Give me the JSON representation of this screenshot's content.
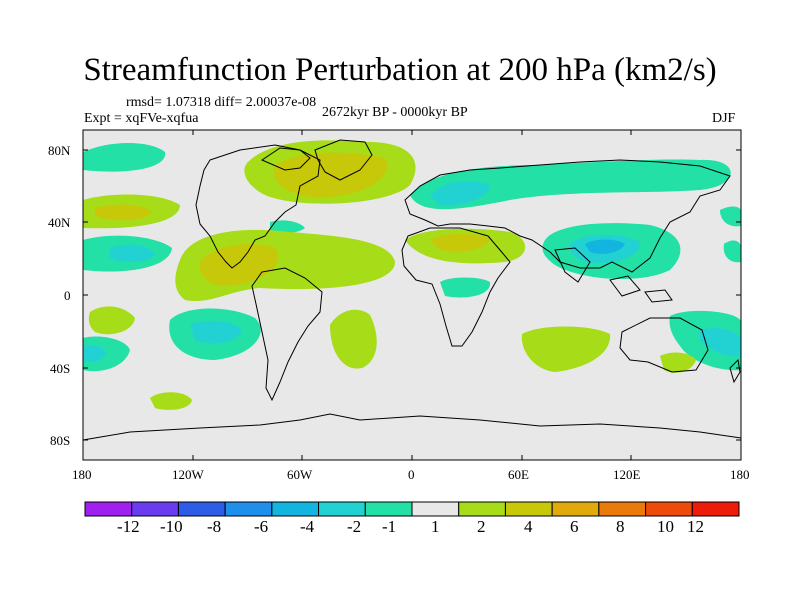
{
  "title": "Streamfunction Perturbation at 200 hPa (km2/s)",
  "stats": "rmsd= 1.07318 diff= 2.00037e-08",
  "experiment": "Expt = xqFVe-xqfua",
  "period": "2672kyr BP - 0000kyr BP",
  "season": "DJF",
  "lat_labels": [
    "80N",
    "40N",
    "0",
    "40S",
    "80S"
  ],
  "lon_labels": [
    "180",
    "120W",
    "60W",
    "0",
    "60E",
    "120E",
    "180"
  ],
  "colorbar": {
    "labels": [
      "-12",
      "-10",
      "-8",
      "-6",
      "-4",
      "-2",
      "-1",
      "1",
      "2",
      "4",
      "6",
      "8",
      "10",
      "12"
    ],
    "colors": [
      "#a020f0",
      "#6a3cf0",
      "#2d5ce6",
      "#1e90ec",
      "#12b5e0",
      "#22d2d2",
      "#22e0a6",
      "#e8e8e8",
      "#a6dc18",
      "#c8c80a",
      "#e0aa0a",
      "#ea7a0a",
      "#ee4a0a",
      "#ee1a0a"
    ]
  },
  "colors": {
    "neg1": "#22e0a6",
    "neg2": "#22d2d2",
    "neg3": "#12b5e0",
    "pos1": "#a6dc18",
    "pos2": "#c8c80a",
    "background": "#e8e8e8"
  }
}
